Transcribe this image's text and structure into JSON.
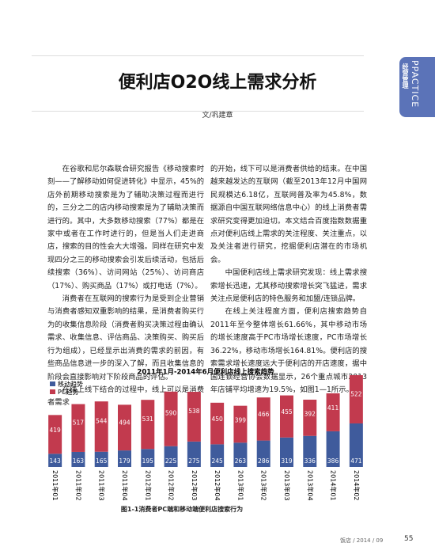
{
  "side_tab": {
    "en": "PPACTICE",
    "cn": "经营管理"
  },
  "header": {
    "title": "便利店O2O线上需求分析",
    "author": "文/巩建章"
  },
  "article": {
    "left_column": [
      "在谷歌和尼尔森联合研究报告《移动搜索时刻——了解移动如何促进转化》中显示，45%的店外前期移动搜索是为了辅助决策过程而进行的，三分之二的店内移动搜索是为了辅助决策而进行的。其中，大多数移动搜索（77%）都是在家中或者在工作时进行的，但是当人们走进商店，搜索的目的性会大大增强。同样在研究中发现四分之三的移动搜索会引发后续活动，包括后续搜索（36%）、访问网站（25%）、访问商店（17%）、购买商品（17%）或打电话（7%）。",
      "消费者在互联网的搜索行为是受到企业营销与消费者感知双重影响的结果，是消费者购买行为的收集信息阶段（消费者购买决策过程由确认需求、收集信息、评估商品、决策购买、购买后行为组成），已经显示出消费的需求的前因，有些商品信息进一步的深入了解，而且收集信息的阶段会直接影响对下阶段商品的评估。",
      "在线上线下结合的过程中，线上可以是消费者需求"
    ],
    "right_column": [
      "的开始，线下可以是消费者供给的结束。在中国越来越发达的互联网（截至2013年12月中国网民规模达6.18亿，互联网普及率为45.8%，数据源自中国互联网络信息中心）的线上消费者需求研究变得更加迫切。本文结合百度指数数据重点对便利店线上需求的关注程度、关注重点，以及关注者进行研究，挖掘便利店潜在的市场机会。",
      "中国便利店线上需求研究发现：线上需求搜索增长迅速，尤其移动搜索增长突飞猛进，需求关注点是便利店的特色服务和加盟/连锁品牌。",
      "在线上关注程度方面，便利店搜索趋势自2011年至今整体增长61.66%，其中移动市场的增长速度高于PC市场增长速度，PC市场增长36.22%，移动市场增长164.81%。便利店的搜索需求增长速度远大于便利店的开店速度，据中国连锁经营协会数据显示，26个重点城市2013年店铺平均增速为19.5%，如图1—1所示。"
    ]
  },
  "chart_data": {
    "type": "bar",
    "stacked": true,
    "title": "2011年1月-2014年6月便利店线上搜索趋势",
    "categories": [
      "2011年01",
      "2011年02",
      "2011年03",
      "2011年04",
      "2012年01",
      "2012年02",
      "2012年03",
      "2012年04",
      "2013年01",
      "2013年02",
      "2013年03",
      "2013年04",
      "2014年01",
      "2014年02"
    ],
    "series": [
      {
        "name": "移动趋势",
        "color": "#3f5b9c",
        "values": [
          143,
          163,
          165,
          179,
          195,
          225,
          275,
          245,
          263,
          286,
          319,
          336,
          386,
          471
        ]
      },
      {
        "name": "PC趋势",
        "color": "#c23a4e",
        "values": [
          419,
          517,
          544,
          494,
          531,
          590,
          538,
          450,
          399,
          466,
          455,
          392,
          411,
          522
        ]
      }
    ],
    "legend": "top-left"
  },
  "caption": "图1-1消费者PC端和移动端便利店搜索行为",
  "footer": {
    "issue": "饭店 / 2014 / 09",
    "page": "55"
  }
}
